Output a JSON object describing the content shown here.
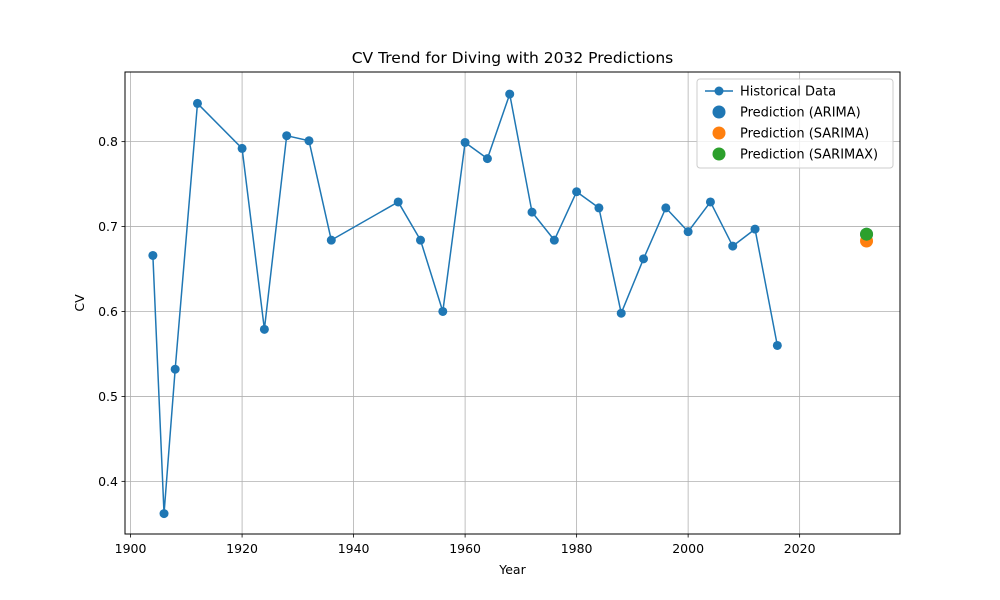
{
  "chart_data": {
    "type": "line",
    "title": "CV Trend for Diving with 2032 Predictions",
    "xlabel": "Year",
    "ylabel": "CV",
    "xlim": [
      1899,
      2038
    ],
    "ylim": [
      0.338,
      0.882
    ],
    "x_ticks": [
      1900,
      1920,
      1940,
      1960,
      1980,
      2000,
      2020
    ],
    "y_ticks": [
      0.4,
      0.5,
      0.6,
      0.7,
      0.8
    ],
    "y_tick_labels": [
      "0.4",
      "0.5",
      "0.6",
      "0.7",
      "0.8"
    ],
    "grid": true,
    "legend_position": "top-right",
    "series": [
      {
        "name": "Historical Data",
        "style": "line-marker",
        "color": "#1f77b4",
        "x": [
          1904,
          1906,
          1908,
          1912,
          1920,
          1924,
          1928,
          1932,
          1936,
          1948,
          1952,
          1956,
          1960,
          1964,
          1968,
          1972,
          1976,
          1980,
          1984,
          1988,
          1992,
          1996,
          2000,
          2004,
          2008,
          2012,
          2016
        ],
        "y": [
          0.666,
          0.362,
          0.532,
          0.845,
          0.792,
          0.579,
          0.807,
          0.801,
          0.684,
          0.729,
          0.684,
          0.6,
          0.799,
          0.78,
          0.856,
          0.717,
          0.684,
          0.741,
          0.722,
          0.598,
          0.662,
          0.722,
          0.694,
          0.729,
          0.677,
          0.697,
          0.56
        ]
      },
      {
        "name": "Prediction (ARIMA)",
        "style": "scatter",
        "color": "#1f77b4",
        "x": [
          2032
        ],
        "y": [
          0.691
        ]
      },
      {
        "name": "Prediction (SARIMA)",
        "style": "scatter",
        "color": "#ff7f0e",
        "x": [
          2032
        ],
        "y": [
          0.683
        ]
      },
      {
        "name": "Prediction (SARIMAX)",
        "style": "scatter",
        "color": "#2ca02c",
        "x": [
          2032
        ],
        "y": [
          0.691
        ]
      }
    ]
  }
}
